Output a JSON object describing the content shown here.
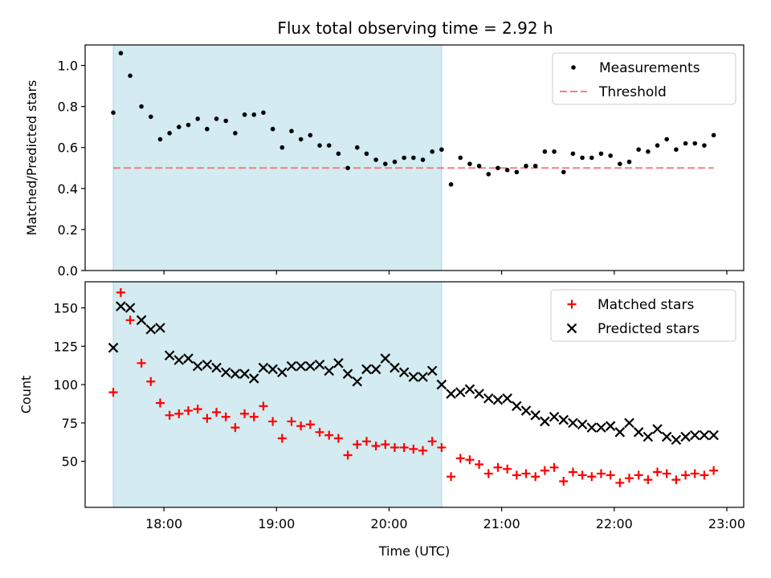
{
  "figure": {
    "title": "Flux total observing time = 2.92 h"
  },
  "colors": {
    "shade": "#d3ebf1",
    "shade_edge": "#a8d6e3",
    "threshold": "#f08080",
    "matched": "#ff0000",
    "predicted": "#000000",
    "measure": "#000000"
  },
  "chart_data": [
    {
      "type": "scatter",
      "panel": "top",
      "xlabel": "",
      "ylabel": "Matched/Predicted stars",
      "ylim": [
        0,
        1.1
      ],
      "yticks": [
        0.0,
        0.2,
        0.4,
        0.6,
        0.8,
        1.0
      ],
      "ytick_labels": [
        "0.0",
        "0.2",
        "0.4",
        "0.6",
        "0.8",
        "1.0"
      ],
      "legend_position": "top-right",
      "shaded_span": [
        "17:33",
        "20:28"
      ],
      "threshold": 0.5,
      "threshold_x": [
        "17:33",
        "22:53"
      ],
      "legend": [
        "Measurements",
        "Threshold"
      ],
      "series": [
        {
          "name": "Measurements",
          "x": [
            "17:33",
            "17:37",
            "17:42",
            "17:48",
            "17:53",
            "17:58",
            "18:03",
            "18:08",
            "18:13",
            "18:18",
            "18:23",
            "18:28",
            "18:33",
            "18:38",
            "18:43",
            "18:48",
            "18:53",
            "18:58",
            "19:03",
            "19:08",
            "19:13",
            "19:18",
            "19:23",
            "19:28",
            "19:33",
            "19:38",
            "19:43",
            "19:48",
            "19:53",
            "19:58",
            "20:03",
            "20:08",
            "20:13",
            "20:18",
            "20:23",
            "20:28",
            "20:33",
            "20:38",
            "20:43",
            "20:48",
            "20:53",
            "20:58",
            "21:03",
            "21:08",
            "21:13",
            "21:18",
            "21:23",
            "21:28",
            "21:33",
            "21:38",
            "21:43",
            "21:48",
            "21:53",
            "21:58",
            "22:03",
            "22:08",
            "22:13",
            "22:18",
            "22:23",
            "22:28",
            "22:33",
            "22:38",
            "22:43",
            "22:48",
            "22:53"
          ],
          "y": [
            0.77,
            1.06,
            0.95,
            0.8,
            0.75,
            0.64,
            0.67,
            0.7,
            0.71,
            0.74,
            0.69,
            0.74,
            0.73,
            0.67,
            0.76,
            0.76,
            0.77,
            0.69,
            0.6,
            0.68,
            0.64,
            0.66,
            0.61,
            0.61,
            0.57,
            0.5,
            0.6,
            0.57,
            0.54,
            0.52,
            0.53,
            0.55,
            0.55,
            0.54,
            0.58,
            0.59,
            0.42,
            0.55,
            0.52,
            0.51,
            0.47,
            0.5,
            0.49,
            0.48,
            0.51,
            0.51,
            0.58,
            0.58,
            0.48,
            0.57,
            0.55,
            0.55,
            0.57,
            0.56,
            0.52,
            0.53,
            0.59,
            0.58,
            0.61,
            0.64,
            0.59,
            0.62,
            0.62,
            0.61,
            0.66
          ]
        }
      ]
    },
    {
      "type": "scatter",
      "panel": "bottom",
      "xlabel": "Time (UTC)",
      "ylabel": "Count",
      "ylim": [
        20,
        167
      ],
      "yticks": [
        50,
        75,
        100,
        125,
        150
      ],
      "ytick_labels": [
        "50",
        "75",
        "100",
        "125",
        "150"
      ],
      "xlim": [
        "17:18",
        "23:09"
      ],
      "xticks": [
        "18:00",
        "19:00",
        "20:00",
        "21:00",
        "22:00",
        "23:00"
      ],
      "xtick_labels": [
        "18:00",
        "19:00",
        "20:00",
        "21:00",
        "22:00",
        "23:00"
      ],
      "legend_position": "top-right",
      "shaded_span": [
        "17:33",
        "20:28"
      ],
      "legend": [
        "Matched stars",
        "Predicted stars"
      ],
      "series": [
        {
          "name": "Matched stars",
          "marker": "plus",
          "x": [
            "17:33",
            "17:37",
            "17:42",
            "17:48",
            "17:53",
            "17:58",
            "18:03",
            "18:08",
            "18:13",
            "18:18",
            "18:23",
            "18:28",
            "18:33",
            "18:38",
            "18:43",
            "18:48",
            "18:53",
            "18:58",
            "19:03",
            "19:08",
            "19:13",
            "19:18",
            "19:23",
            "19:28",
            "19:33",
            "19:38",
            "19:43",
            "19:48",
            "19:53",
            "19:58",
            "20:03",
            "20:08",
            "20:13",
            "20:18",
            "20:23",
            "20:28",
            "20:33",
            "20:38",
            "20:43",
            "20:48",
            "20:53",
            "20:58",
            "21:03",
            "21:08",
            "21:13",
            "21:18",
            "21:23",
            "21:28",
            "21:33",
            "21:38",
            "21:43",
            "21:48",
            "21:53",
            "21:58",
            "22:03",
            "22:08",
            "22:13",
            "22:18",
            "22:23",
            "22:28",
            "22:33",
            "22:38",
            "22:43",
            "22:48",
            "22:53"
          ],
          "y": [
            95,
            160,
            142,
            114,
            102,
            88,
            80,
            81,
            83,
            84,
            78,
            82,
            79,
            72,
            81,
            79,
            86,
            76,
            65,
            76,
            73,
            74,
            69,
            67,
            65,
            54,
            61,
            63,
            60,
            61,
            59,
            59,
            58,
            57,
            63,
            59,
            40,
            52,
            51,
            48,
            42,
            46,
            45,
            41,
            42,
            40,
            44,
            46,
            37,
            43,
            41,
            40,
            42,
            41,
            36,
            39,
            41,
            38,
            43,
            42,
            38,
            41,
            42,
            41,
            44
          ]
        },
        {
          "name": "Predicted stars",
          "marker": "x",
          "x": [
            "17:33",
            "17:37",
            "17:42",
            "17:48",
            "17:53",
            "17:58",
            "18:03",
            "18:08",
            "18:13",
            "18:18",
            "18:23",
            "18:28",
            "18:33",
            "18:38",
            "18:43",
            "18:48",
            "18:53",
            "18:58",
            "19:03",
            "19:08",
            "19:13",
            "19:18",
            "19:23",
            "19:28",
            "19:33",
            "19:38",
            "19:43",
            "19:48",
            "19:53",
            "19:58",
            "20:03",
            "20:08",
            "20:13",
            "20:18",
            "20:23",
            "20:28",
            "20:33",
            "20:38",
            "20:43",
            "20:48",
            "20:53",
            "20:58",
            "21:03",
            "21:08",
            "21:13",
            "21:18",
            "21:23",
            "21:28",
            "21:33",
            "21:38",
            "21:43",
            "21:48",
            "21:53",
            "21:58",
            "22:03",
            "22:08",
            "22:13",
            "22:18",
            "22:23",
            "22:28",
            "22:33",
            "22:38",
            "22:43",
            "22:48",
            "22:53"
          ],
          "y": [
            124,
            151,
            150,
            142,
            136,
            137,
            119,
            116,
            117,
            112,
            113,
            111,
            108,
            107,
            107,
            104,
            111,
            110,
            108,
            112,
            112,
            112,
            113,
            109,
            114,
            107,
            102,
            110,
            110,
            117,
            111,
            108,
            105,
            105,
            109,
            100,
            94,
            95,
            97,
            94,
            91,
            90,
            91,
            86,
            83,
            80,
            76,
            79,
            77,
            75,
            74,
            72,
            72,
            73,
            69,
            75,
            69,
            66,
            71,
            66,
            64,
            66,
            67,
            67,
            67
          ]
        }
      ]
    }
  ]
}
